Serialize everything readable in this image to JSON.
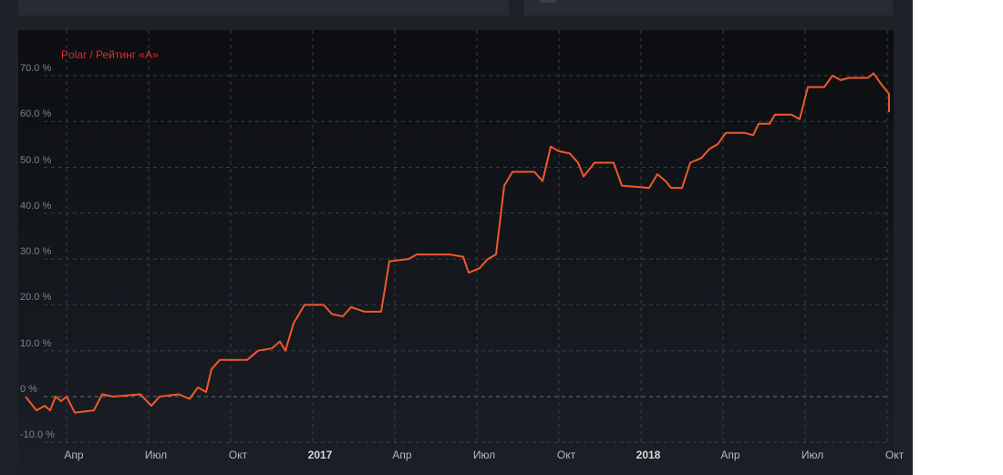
{
  "colors": {
    "line": "#f0582a",
    "title": "#e8262b",
    "grid": "#3a3e45"
  },
  "chart_data": {
    "type": "line",
    "title": "Polar / Рейтинг «А»",
    "yunit": "%",
    "ylim": [
      -10,
      75
    ],
    "xlim": [
      0,
      32
    ],
    "y_ticks": [
      {
        "value": 70,
        "label": "70.0 %"
      },
      {
        "value": 60,
        "label": "60.0 %"
      },
      {
        "value": 50,
        "label": "50.0 %"
      },
      {
        "value": 40,
        "label": "40.0 %"
      },
      {
        "value": 30,
        "label": "30.0 %"
      },
      {
        "value": 20,
        "label": "20.0 %"
      },
      {
        "value": 10,
        "label": "10.0 %"
      },
      {
        "value": 0,
        "label": "0 %"
      },
      {
        "value": -10,
        "label": "-10.0 %"
      }
    ],
    "x_ticks": [
      {
        "label": "Апр",
        "pos": 1.7,
        "major": false
      },
      {
        "label": "Июл",
        "pos": 4.7,
        "major": false
      },
      {
        "label": "Окт",
        "pos": 7.7,
        "major": false
      },
      {
        "label": "2017",
        "pos": 10.7,
        "major": true
      },
      {
        "label": "Апр",
        "pos": 13.7,
        "major": false
      },
      {
        "label": "Июл",
        "pos": 16.7,
        "major": false
      },
      {
        "label": "Окт",
        "pos": 19.7,
        "major": false
      },
      {
        "label": "2018",
        "pos": 22.7,
        "major": true
      },
      {
        "label": "Апр",
        "pos": 25.7,
        "major": false
      },
      {
        "label": "Июл",
        "pos": 28.7,
        "major": false
      },
      {
        "label": "Окт",
        "pos": 31.7,
        "major": false
      }
    ],
    "grid": true,
    "series": [
      {
        "values": [
          [
            0.0,
            0
          ],
          [
            0.4,
            -3
          ],
          [
            0.7,
            -2
          ],
          [
            0.9,
            -3
          ],
          [
            1.1,
            0
          ],
          [
            1.3,
            -1
          ],
          [
            1.5,
            0
          ],
          [
            1.8,
            -3.5
          ],
          [
            2.5,
            -3
          ],
          [
            2.8,
            0.5
          ],
          [
            3.2,
            0
          ],
          [
            4.2,
            0.5
          ],
          [
            4.6,
            -2
          ],
          [
            4.9,
            0
          ],
          [
            5.6,
            0.5
          ],
          [
            6.0,
            -0.5
          ],
          [
            6.3,
            2
          ],
          [
            6.6,
            1
          ],
          [
            6.8,
            6
          ],
          [
            7.1,
            8
          ],
          [
            8.1,
            8
          ],
          [
            8.5,
            10
          ],
          [
            9.0,
            10.5
          ],
          [
            9.3,
            12
          ],
          [
            9.5,
            10
          ],
          [
            9.8,
            16
          ],
          [
            10.2,
            20
          ],
          [
            10.9,
            20
          ],
          [
            11.2,
            18
          ],
          [
            11.6,
            17.5
          ],
          [
            11.9,
            19.5
          ],
          [
            12.4,
            18.5
          ],
          [
            13.0,
            18.5
          ],
          [
            13.3,
            29.5
          ],
          [
            14.0,
            30
          ],
          [
            14.3,
            31
          ],
          [
            15.5,
            31
          ],
          [
            16.0,
            30.5
          ],
          [
            16.2,
            27
          ],
          [
            16.6,
            28
          ],
          [
            16.9,
            30
          ],
          [
            17.2,
            31
          ],
          [
            17.5,
            46
          ],
          [
            17.8,
            49
          ],
          [
            18.6,
            49
          ],
          [
            18.9,
            47
          ],
          [
            19.2,
            54.5
          ],
          [
            19.5,
            53.5
          ],
          [
            19.9,
            53
          ],
          [
            20.2,
            51
          ],
          [
            20.4,
            48
          ],
          [
            20.8,
            51
          ],
          [
            21.5,
            51
          ],
          [
            21.8,
            46
          ],
          [
            22.8,
            45.5
          ],
          [
            23.1,
            48.5
          ],
          [
            23.4,
            47
          ],
          [
            23.6,
            45.5
          ],
          [
            24.0,
            45.5
          ],
          [
            24.3,
            51
          ],
          [
            24.7,
            52
          ],
          [
            25.0,
            54
          ],
          [
            25.3,
            55
          ],
          [
            25.6,
            57.5
          ],
          [
            26.3,
            57.5
          ],
          [
            26.6,
            57
          ],
          [
            26.8,
            59.5
          ],
          [
            27.2,
            59.5
          ],
          [
            27.4,
            61.5
          ],
          [
            28.0,
            61.5
          ],
          [
            28.3,
            60.5
          ],
          [
            28.6,
            67.5
          ],
          [
            29.2,
            67.5
          ],
          [
            29.5,
            70
          ],
          [
            29.8,
            69
          ],
          [
            30.1,
            69.5
          ],
          [
            30.8,
            69.5
          ],
          [
            31.0,
            70.5
          ],
          [
            31.3,
            68
          ],
          [
            31.6,
            66
          ],
          [
            32.0,
            64
          ],
          [
            32.5,
            63
          ],
          [
            33.0,
            63
          ],
          [
            33.2,
            62
          ]
        ]
      }
    ]
  }
}
